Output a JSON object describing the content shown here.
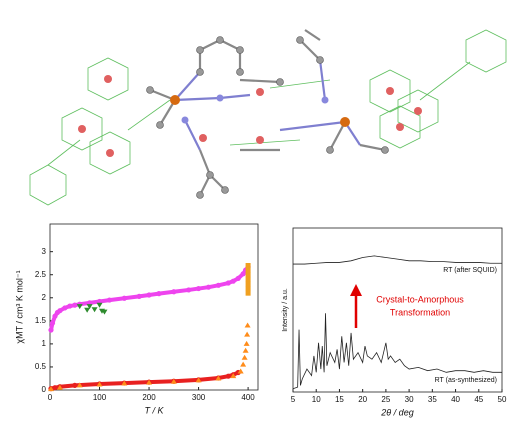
{
  "chart_data": [
    {
      "type": "scatter",
      "xlabel": "T / K",
      "ylabel": "χMT / cm³ K mol⁻¹",
      "xlim": [
        0,
        420
      ],
      "xticks": [
        0,
        100,
        200,
        300,
        400
      ],
      "ylim": [
        0,
        3.6
      ],
      "yticks": [
        0,
        0.5,
        1,
        1.5,
        2,
        2.5,
        3
      ],
      "series": [
        {
          "color": "#ee44ee",
          "marker": "circle",
          "connect": true,
          "x": [
            2,
            5,
            10,
            15,
            20,
            30,
            40,
            50,
            60,
            80,
            100,
            120,
            150,
            180,
            200,
            220,
            250,
            280,
            300,
            320,
            340,
            360,
            370,
            380,
            390,
            395,
            400
          ],
          "values": [
            1.3,
            1.45,
            1.6,
            1.68,
            1.72,
            1.78,
            1.82,
            1.84,
            1.86,
            1.89,
            1.92,
            1.95,
            1.99,
            2.03,
            2.06,
            2.09,
            2.13,
            2.17,
            2.2,
            2.23,
            2.27,
            2.32,
            2.36,
            2.42,
            2.52,
            2.6,
            2.67
          ]
        },
        {
          "color": "#2e8b2e",
          "marker": "triangle-down",
          "connect": false,
          "x": [
            60,
            75,
            80,
            90,
            100,
            105,
            110
          ],
          "values": [
            1.82,
            1.74,
            1.82,
            1.75,
            1.85,
            1.72,
            1.7
          ]
        },
        {
          "color": "#e82020",
          "marker": "circle",
          "connect": true,
          "x": [
            2,
            10,
            20,
            50,
            100,
            150,
            200,
            250,
            300,
            340,
            360,
            370,
            380
          ],
          "values": [
            0.03,
            0.05,
            0.07,
            0.1,
            0.13,
            0.15,
            0.17,
            0.19,
            0.22,
            0.26,
            0.3,
            0.33,
            0.38
          ]
        },
        {
          "color": "#ff8c1a",
          "marker": "triangle",
          "connect": false,
          "x": [
            2,
            20,
            60,
            100,
            150,
            200,
            250,
            300,
            340,
            370,
            385,
            390,
            393,
            395,
            397,
            398,
            399
          ],
          "values": [
            0.02,
            0.05,
            0.1,
            0.12,
            0.14,
            0.16,
            0.18,
            0.21,
            0.25,
            0.3,
            0.4,
            0.55,
            0.7,
            0.85,
            1.0,
            1.2,
            1.4
          ]
        },
        {
          "color": "#f0a020",
          "marker": "square",
          "connect": false,
          "x": [
            400,
            400,
            400,
            400,
            400,
            400,
            400
          ],
          "values": [
            2.1,
            2.2,
            2.3,
            2.4,
            2.5,
            2.6,
            2.7
          ]
        }
      ]
    },
    {
      "type": "line",
      "xlabel": "2θ / deg",
      "ylabel": "Intensity / a.u.",
      "xlim": [
        5,
        50
      ],
      "xticks": [
        5,
        10,
        15,
        20,
        25,
        30,
        35,
        40,
        45,
        50
      ],
      "ylim": [
        0,
        100
      ],
      "annotations": [
        "RT (after SQUID)",
        "RT (as-synthesized)",
        "Crystal-to-Amorphous",
        "Transformation"
      ],
      "arrow_color": "#e00000",
      "series": [
        {
          "color": "#222222",
          "x": [
            5,
            7.5,
            10,
            12.5,
            15,
            17.5,
            20,
            22.5,
            25,
            27.5,
            30,
            32.5,
            35,
            37.5,
            40,
            42.5,
            45,
            47.5,
            50
          ],
          "values": [
            78,
            78,
            78.5,
            79,
            79,
            80,
            82,
            83,
            82,
            81,
            80,
            80,
            79.5,
            79.5,
            79,
            79,
            79,
            78.5,
            78.5
          ]
        },
        {
          "color": "#222222",
          "x": [
            5,
            6,
            6.3,
            6.6,
            7,
            8,
            9,
            9.5,
            10,
            10.5,
            11,
            11.3,
            11.7,
            12,
            12.3,
            13,
            14,
            14.5,
            15,
            15.5,
            16,
            16.5,
            17,
            17.5,
            18,
            19,
            20,
            20.5,
            21,
            22,
            23,
            24,
            25,
            25.5,
            26,
            27,
            28,
            29,
            30,
            32,
            34,
            36,
            38,
            40,
            42,
            44,
            46,
            48,
            50
          ],
          "values": [
            2,
            3,
            38,
            4,
            8,
            14,
            10,
            22,
            12,
            30,
            14,
            28,
            12,
            48,
            16,
            24,
            18,
            26,
            14,
            34,
            18,
            30,
            16,
            36,
            20,
            24,
            18,
            28,
            22,
            20,
            24,
            18,
            30,
            20,
            22,
            18,
            20,
            16,
            14,
            15,
            13,
            14,
            12,
            13,
            13,
            12,
            13,
            12,
            12
          ]
        }
      ]
    }
  ]
}
